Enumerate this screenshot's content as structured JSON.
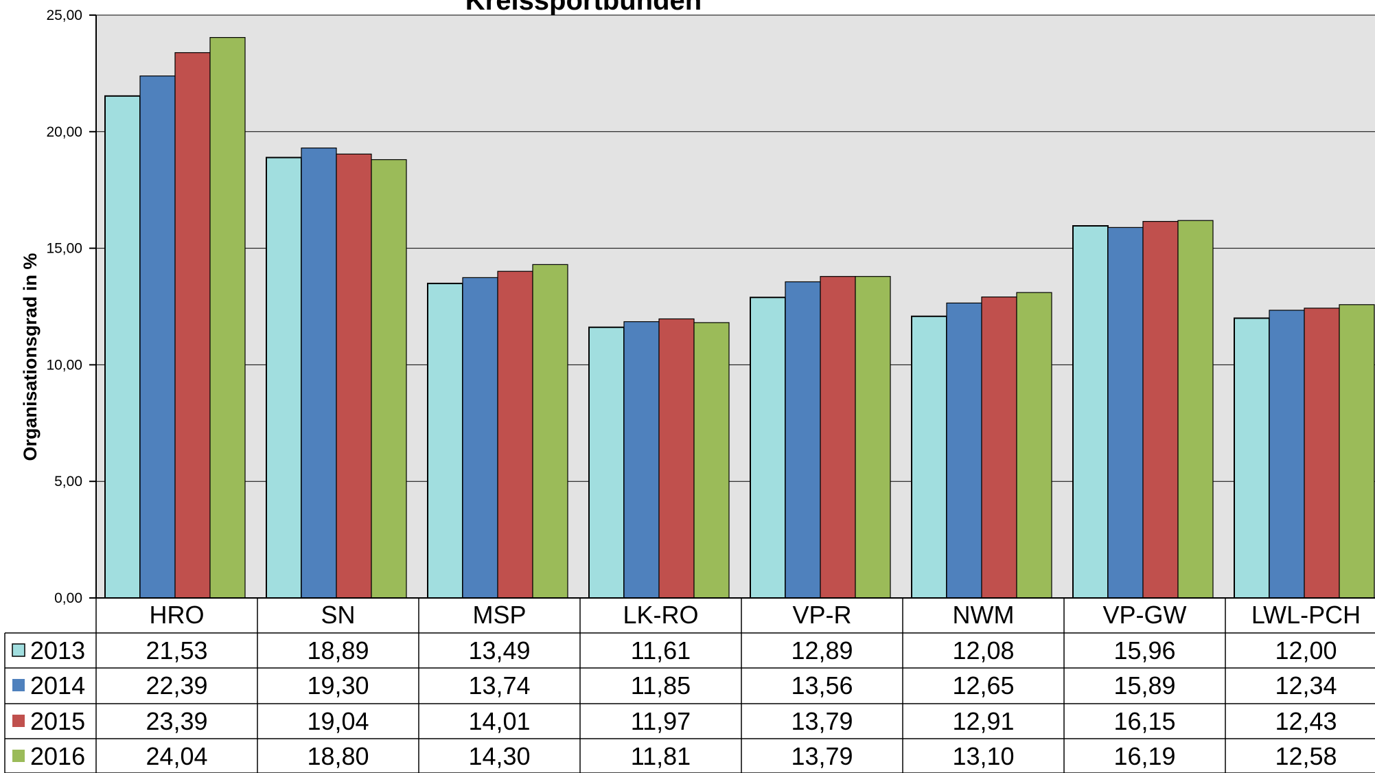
{
  "chart_data": {
    "type": "bar",
    "title": "Kreissportbünden",
    "ylabel": "Organisationsgrad in %",
    "xlabel": "",
    "ylim": [
      0,
      25
    ],
    "yticks": [
      "0,00",
      "5,00",
      "10,00",
      "15,00",
      "20,00",
      "25,00"
    ],
    "grid": true,
    "legend": "data-table-left",
    "categories": [
      "HRO",
      "SN",
      "MSP",
      "LK-RO",
      "VP-R",
      "NWM",
      "VP-GW",
      "LWL-PCH"
    ],
    "series": [
      {
        "name": "2013",
        "color": "#A1DEDF",
        "values": [
          21.53,
          18.89,
          13.49,
          11.61,
          12.89,
          12.08,
          15.96,
          12.0
        ],
        "labels": [
          "21,53",
          "18,89",
          "13,49",
          "11,61",
          "12,89",
          "12,08",
          "15,96",
          "12,00"
        ]
      },
      {
        "name": "2014",
        "color": "#4F81BD",
        "values": [
          22.39,
          19.3,
          13.74,
          11.85,
          13.56,
          12.65,
          15.89,
          12.34
        ],
        "labels": [
          "22,39",
          "19,30",
          "13,74",
          "11,85",
          "13,56",
          "12,65",
          "15,89",
          "12,34"
        ]
      },
      {
        "name": "2015",
        "color": "#C0504D",
        "values": [
          23.39,
          19.04,
          14.01,
          11.97,
          13.79,
          12.91,
          16.15,
          12.43
        ],
        "labels": [
          "23,39",
          "19,04",
          "14,01",
          "11,97",
          "13,79",
          "12,91",
          "16,15",
          "12,43"
        ]
      },
      {
        "name": "2016",
        "color": "#9BBB59",
        "values": [
          24.04,
          18.8,
          14.3,
          11.81,
          13.79,
          13.1,
          16.19,
          12.58
        ],
        "labels": [
          "24,04",
          "18,80",
          "14,30",
          "11,81",
          "13,79",
          "13,10",
          "16,19",
          "12,58"
        ]
      }
    ],
    "plot_background": "#E3E3E3"
  }
}
